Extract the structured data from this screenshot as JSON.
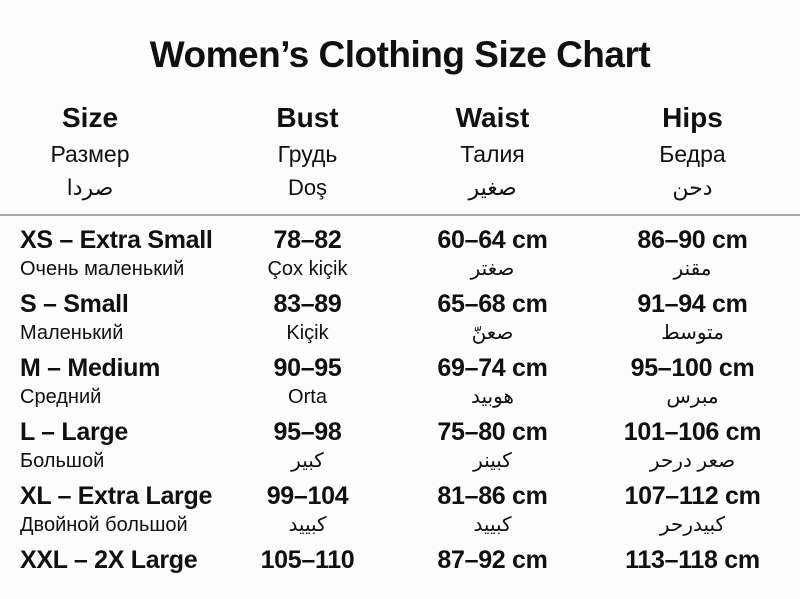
{
  "page": {
    "title": "Women’s Clothing Size Chart"
  },
  "table": {
    "columns": [
      {
        "lines": [
          "Size",
          "Размер",
          "صردا"
        ]
      },
      {
        "lines": [
          "Bust",
          "Грудь",
          "Doş"
        ]
      },
      {
        "lines": [
          "Waist",
          "Талия",
          "صغير"
        ]
      },
      {
        "lines": [
          "Hips",
          "Бедра",
          "دحن"
        ]
      }
    ],
    "rows": [
      {
        "size": "XS – Extra Small",
        "size_sub": "Очень маленький",
        "bust": "78–82",
        "bust_sub": "Çox kiçik",
        "waist": "60–64 cm",
        "waist_sub": "صغتر",
        "hips": "86–90 cm",
        "hips_sub": "مقنر"
      },
      {
        "size": "S – Small",
        "size_sub": "Маленький",
        "bust": "83–89",
        "bust_sub": "Kiçik",
        "waist": "65–68 cm",
        "waist_sub": "صعنّ",
        "hips": "91–94 cm",
        "hips_sub": "متوسط"
      },
      {
        "size": "M – Medium",
        "size_sub": "Средний",
        "bust": "90–95",
        "bust_sub": "Orta",
        "waist": "69–74 cm",
        "waist_sub": "هوبيد",
        "hips": "95–100 cm",
        "hips_sub": "مبرس"
      },
      {
        "size": "L – Large",
        "size_sub": "Большой",
        "bust": "95–98",
        "bust_sub": "كبير",
        "waist": "75–80 cm",
        "waist_sub": "كبينر",
        "hips": "101–106 cm",
        "hips_sub": "صعر درحر"
      },
      {
        "size": "XL – Extra Large",
        "size_sub": "Двойной большой",
        "bust": "99–104",
        "bust_sub": "كبييد",
        "waist": "81–86 cm",
        "waist_sub": "كبييد",
        "hips": "107–112 cm",
        "hips_sub": "كبيدرحر"
      },
      {
        "size": "XXL – 2X Large",
        "size_sub": "",
        "bust": "105–110",
        "bust_sub": "",
        "waist": "87–92 cm",
        "waist_sub": "",
        "hips": "113–118 cm",
        "hips_sub": ""
      }
    ]
  },
  "chart_data": {
    "type": "table",
    "title": "Women’s Clothing Size Chart",
    "headers": [
      "Size",
      "Bust",
      "Waist",
      "Hips"
    ],
    "rows": [
      [
        "XS – Extra Small",
        "78–82",
        "60–64 cm",
        "86–90 cm"
      ],
      [
        "S – Small",
        "83–89",
        "65–68 cm",
        "91–94 cm"
      ],
      [
        "M – Medium",
        "90–95",
        "69–74 cm",
        "95–100 cm"
      ],
      [
        "L – Large",
        "95–98",
        "75–80 cm",
        "101–106 cm"
      ],
      [
        "XL – Extra Large",
        "99–104",
        "81–86 cm",
        "107–112 cm"
      ],
      [
        "XXL – 2X Large",
        "105–110",
        "87–92 cm",
        "113–118 cm"
      ]
    ]
  }
}
